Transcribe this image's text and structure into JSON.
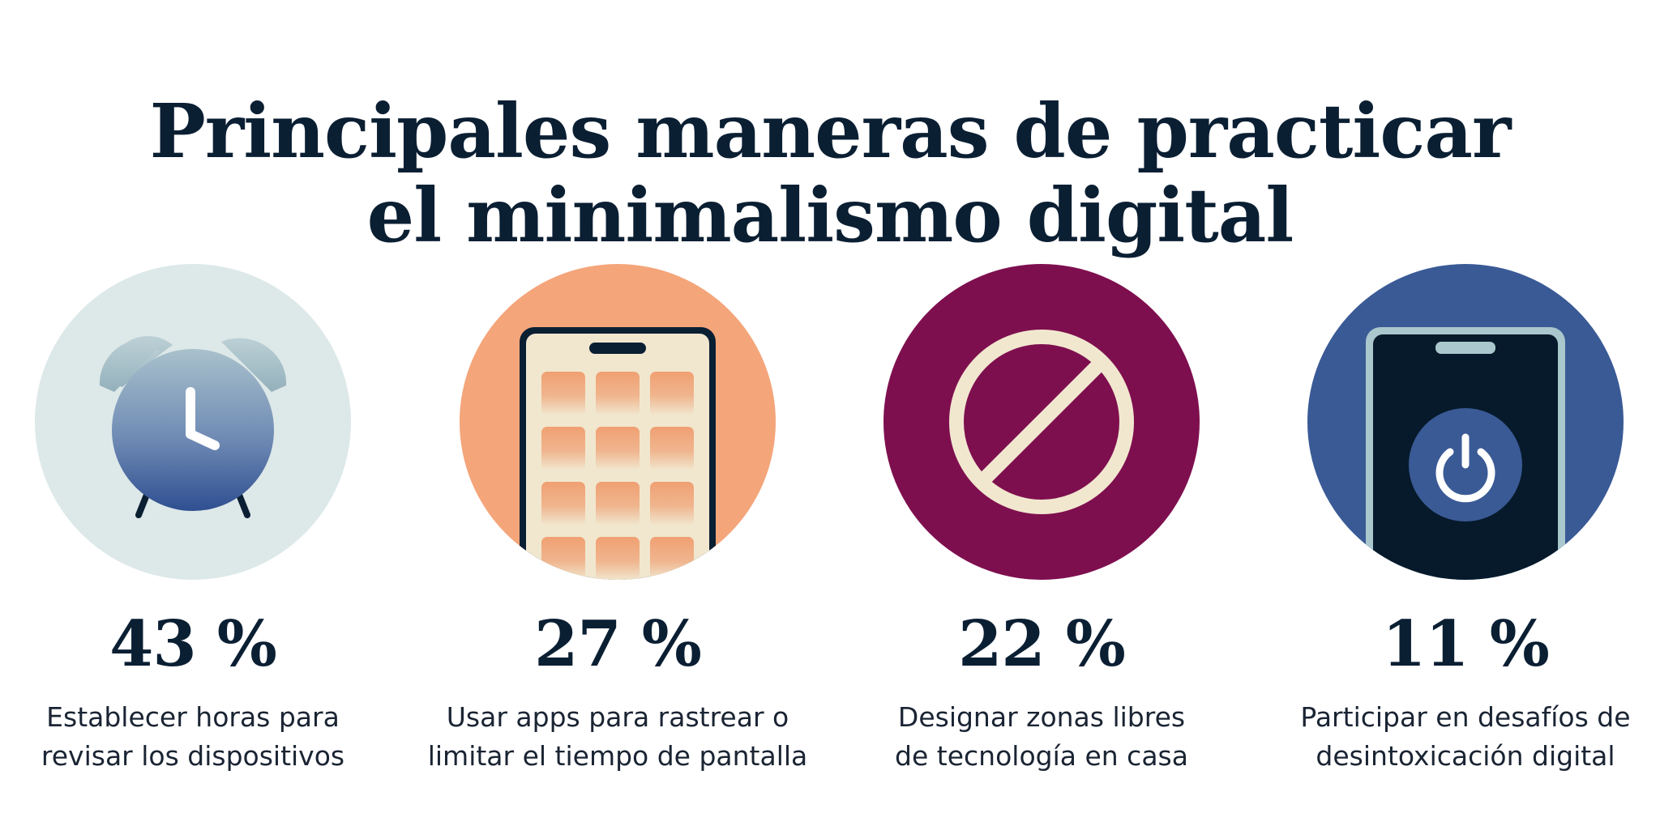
{
  "title": {
    "line1": "Principales maneras de practicar",
    "line2": "el minimalismo digital"
  },
  "items": [
    {
      "percent": "43 %",
      "desc_line1": "Establecer horas para",
      "desc_line2": "revisar los dispositivos",
      "icon": "alarm-clock-icon",
      "circle_color": "#dde8e8"
    },
    {
      "percent": "27 %",
      "desc_line1": "Usar apps para rastrear o",
      "desc_line2": "limitar el tiempo de pantalla",
      "icon": "smartphone-apps-icon",
      "circle_color": "#f4a57a"
    },
    {
      "percent": "22 %",
      "desc_line1": "Designar zonas libres",
      "desc_line2": "de tecnología en casa",
      "icon": "prohibited-icon",
      "circle_color": "#7e0f4f"
    },
    {
      "percent": "11 %",
      "desc_line1": "Participar en desafíos de",
      "desc_line2": "desintoxicación digital",
      "icon": "phone-power-off-icon",
      "circle_color": "#3a5a96"
    }
  ]
}
